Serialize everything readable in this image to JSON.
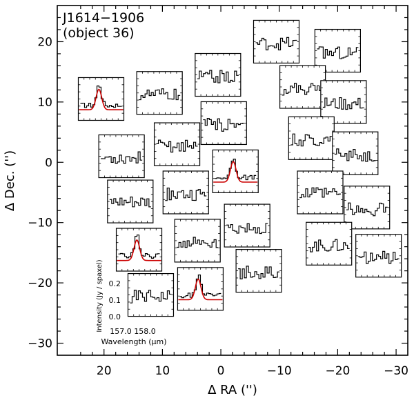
{
  "chart_data": {
    "type": "scatter",
    "title": "J1614−1906",
    "subtitle": "(object 36)",
    "xlabel": "Δ RA ('')",
    "ylabel": "Δ Dec. ('')",
    "xlim": [
      28,
      -32
    ],
    "ylim": [
      -32,
      26
    ],
    "x_ticks": [
      20,
      10,
      0,
      -10,
      -20,
      -30
    ],
    "x_tick_labels": [
      "20",
      "10",
      "0",
      "−10",
      "−20",
      "−30"
    ],
    "y_ticks": [
      20,
      10,
      0,
      -10,
      -20,
      -30
    ],
    "y_tick_labels": [
      "20",
      "10",
      "0",
      "−10",
      "−20",
      "−30"
    ],
    "inset_axes": {
      "ylabel": "Intensity (Jy / spaxel)",
      "xlabel": "Wavelength (μm)",
      "y_tick_labels": [
        "0.2",
        "0.1",
        "0.0"
      ],
      "x_tick_labels": [
        "157.0",
        "158.0"
      ]
    },
    "spaxels": [
      {
        "ra": 20.5,
        "dec": 10.5,
        "line": true
      },
      {
        "ra": 10.5,
        "dec": 11.5,
        "line": false
      },
      {
        "ra": 0.5,
        "dec": 14.5,
        "line": false
      },
      {
        "ra": -9.5,
        "dec": 20.0,
        "line": false
      },
      {
        "ra": -20.0,
        "dec": 18.5,
        "line": false
      },
      {
        "ra": -14.0,
        "dec": 12.5,
        "line": false
      },
      {
        "ra": -21.0,
        "dec": 10.0,
        "line": false
      },
      {
        "ra": 17.0,
        "dec": 1.0,
        "line": false
      },
      {
        "ra": 7.5,
        "dec": 3.0,
        "line": false
      },
      {
        "ra": -0.5,
        "dec": 6.5,
        "line": false
      },
      {
        "ra": -15.5,
        "dec": 4.0,
        "line": false
      },
      {
        "ra": -2.5,
        "dec": -1.5,
        "line": true
      },
      {
        "ra": -23.0,
        "dec": 1.5,
        "line": false
      },
      {
        "ra": 15.5,
        "dec": -6.5,
        "line": false
      },
      {
        "ra": 6.0,
        "dec": -5.0,
        "line": false
      },
      {
        "ra": -17.0,
        "dec": -5.0,
        "line": false
      },
      {
        "ra": -25.0,
        "dec": -7.5,
        "line": false
      },
      {
        "ra": -4.5,
        "dec": -10.5,
        "line": false
      },
      {
        "ra": 14.0,
        "dec": -14.5,
        "line": true
      },
      {
        "ra": 4.0,
        "dec": -13.0,
        "line": false
      },
      {
        "ra": -18.5,
        "dec": -13.5,
        "line": false
      },
      {
        "ra": -27.0,
        "dec": -15.5,
        "line": false
      },
      {
        "ra": -6.5,
        "dec": -18.0,
        "line": false
      },
      {
        "ra": 12.0,
        "dec": -22.0,
        "line": false
      },
      {
        "ra": 3.5,
        "dec": -21.0,
        "line": true
      }
    ]
  }
}
